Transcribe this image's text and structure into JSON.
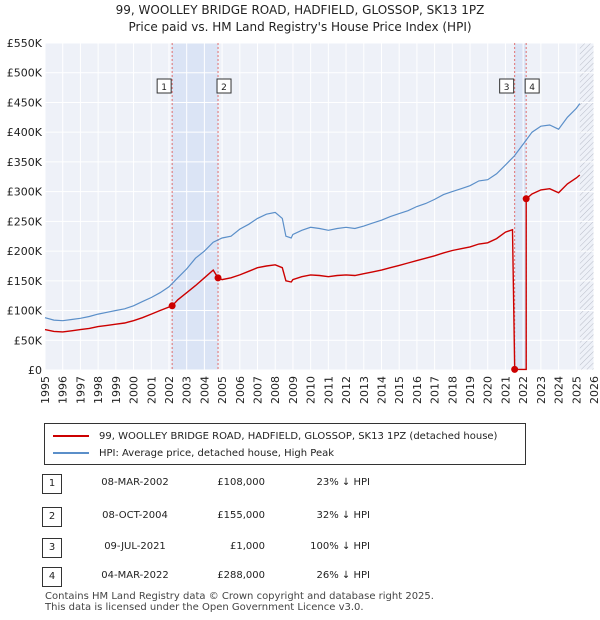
{
  "chart_data": {
    "type": "line",
    "title": "99, WOOLLEY BRIDGE ROAD, HADFIELD, GLOSSOP, SK13 1PZ",
    "subtitle": "Price paid vs. HM Land Registry's House Price Index (HPI)",
    "xlim": [
      1995,
      2026
    ],
    "ylim": [
      0,
      550000
    ],
    "x_ticks": [
      "1995",
      "1996",
      "1997",
      "1998",
      "1999",
      "2000",
      "2001",
      "2002",
      "2003",
      "2004",
      "2005",
      "2006",
      "2007",
      "2008",
      "2009",
      "2010",
      "2011",
      "2012",
      "2013",
      "2014",
      "2015",
      "2016",
      "2017",
      "2018",
      "2019",
      "2020",
      "2021",
      "2022",
      "2023",
      "2024",
      "2025",
      "2026"
    ],
    "y_ticks": [
      {
        "value": 0,
        "label": "£0"
      },
      {
        "value": 50000,
        "label": "£50K"
      },
      {
        "value": 100000,
        "label": "£100K"
      },
      {
        "value": 150000,
        "label": "£150K"
      },
      {
        "value": 200000,
        "label": "£200K"
      },
      {
        "value": 250000,
        "label": "£250K"
      },
      {
        "value": 300000,
        "label": "£300K"
      },
      {
        "value": 350000,
        "label": "£350K"
      },
      {
        "value": 400000,
        "label": "£400K"
      },
      {
        "value": 450000,
        "label": "£450K"
      },
      {
        "value": 500000,
        "label": "£500K"
      },
      {
        "value": 550000,
        "label": "£550K"
      }
    ],
    "grid": true,
    "shaded_future_from": 2025.2,
    "series": [
      {
        "name": "HPI: Average price, detached house, High Peak",
        "color": "#5b8fc9",
        "points": [
          [
            1995,
            88000
          ],
          [
            1995.5,
            84000
          ],
          [
            1996,
            83000
          ],
          [
            1996.5,
            85000
          ],
          [
            1997,
            87000
          ],
          [
            1997.5,
            90000
          ],
          [
            1998,
            94000
          ],
          [
            1998.5,
            97000
          ],
          [
            1999,
            100000
          ],
          [
            1999.5,
            103000
          ],
          [
            2000,
            108000
          ],
          [
            2000.5,
            115000
          ],
          [
            2001,
            122000
          ],
          [
            2001.5,
            130000
          ],
          [
            2002,
            140000
          ],
          [
            2002.5,
            155000
          ],
          [
            2003,
            170000
          ],
          [
            2003.5,
            188000
          ],
          [
            2004,
            200000
          ],
          [
            2004.5,
            215000
          ],
          [
            2005,
            222000
          ],
          [
            2005.5,
            225000
          ],
          [
            2006,
            237000
          ],
          [
            2006.5,
            245000
          ],
          [
            2007,
            255000
          ],
          [
            2007.5,
            262000
          ],
          [
            2008,
            265000
          ],
          [
            2008.4,
            255000
          ],
          [
            2008.6,
            225000
          ],
          [
            2008.9,
            222000
          ],
          [
            2009,
            228000
          ],
          [
            2009.5,
            235000
          ],
          [
            2010,
            240000
          ],
          [
            2010.5,
            238000
          ],
          [
            2011,
            235000
          ],
          [
            2011.5,
            238000
          ],
          [
            2012,
            240000
          ],
          [
            2012.5,
            238000
          ],
          [
            2013,
            242000
          ],
          [
            2013.5,
            247000
          ],
          [
            2014,
            252000
          ],
          [
            2014.5,
            258000
          ],
          [
            2015,
            263000
          ],
          [
            2015.5,
            268000
          ],
          [
            2016,
            275000
          ],
          [
            2016.5,
            280000
          ],
          [
            2017,
            287000
          ],
          [
            2017.5,
            295000
          ],
          [
            2018,
            300000
          ],
          [
            2018.5,
            305000
          ],
          [
            2019,
            310000
          ],
          [
            2019.5,
            318000
          ],
          [
            2020,
            320000
          ],
          [
            2020.5,
            330000
          ],
          [
            2021,
            345000
          ],
          [
            2021.5,
            360000
          ],
          [
            2022,
            380000
          ],
          [
            2022.5,
            400000
          ],
          [
            2023,
            410000
          ],
          [
            2023.5,
            412000
          ],
          [
            2024,
            405000
          ],
          [
            2024.5,
            425000
          ],
          [
            2025,
            440000
          ],
          [
            2025.2,
            448000
          ]
        ]
      },
      {
        "name": "99, WOOLLEY BRIDGE ROAD, HADFIELD, GLOSSOP, SK13 1PZ (detached house)",
        "color": "#cc0000",
        "points": [
          [
            1995,
            68000
          ],
          [
            1995.5,
            65000
          ],
          [
            1996,
            64000
          ],
          [
            1996.5,
            66000
          ],
          [
            1997,
            68000
          ],
          [
            1997.5,
            70000
          ],
          [
            1998,
            73000
          ],
          [
            1998.5,
            75000
          ],
          [
            1999,
            77000
          ],
          [
            1999.5,
            79000
          ],
          [
            2000,
            83000
          ],
          [
            2000.5,
            88000
          ],
          [
            2001,
            94000
          ],
          [
            2001.5,
            100000
          ],
          [
            2002.18,
            108000
          ],
          [
            2002.5,
            118000
          ],
          [
            2003,
            130000
          ],
          [
            2003.5,
            142000
          ],
          [
            2004,
            155000
          ],
          [
            2004.5,
            168000
          ],
          [
            2004.77,
            155000
          ],
          [
            2005,
            152000
          ],
          [
            2005.5,
            155000
          ],
          [
            2006,
            160000
          ],
          [
            2006.5,
            166000
          ],
          [
            2007,
            172000
          ],
          [
            2007.5,
            175000
          ],
          [
            2008,
            177000
          ],
          [
            2008.4,
            172000
          ],
          [
            2008.6,
            150000
          ],
          [
            2008.9,
            148000
          ],
          [
            2009,
            152000
          ],
          [
            2009.5,
            157000
          ],
          [
            2010,
            160000
          ],
          [
            2010.5,
            159000
          ],
          [
            2011,
            157000
          ],
          [
            2011.5,
            159000
          ],
          [
            2012,
            160000
          ],
          [
            2012.5,
            159000
          ],
          [
            2013,
            162000
          ],
          [
            2013.5,
            165000
          ],
          [
            2014,
            168000
          ],
          [
            2014.5,
            172000
          ],
          [
            2015,
            176000
          ],
          [
            2015.5,
            180000
          ],
          [
            2016,
            184000
          ],
          [
            2016.5,
            188000
          ],
          [
            2017,
            192000
          ],
          [
            2017.5,
            197000
          ],
          [
            2018,
            201000
          ],
          [
            2018.5,
            204000
          ],
          [
            2019,
            207000
          ],
          [
            2019.5,
            212000
          ],
          [
            2020,
            214000
          ],
          [
            2020.5,
            221000
          ],
          [
            2021,
            232000
          ],
          [
            2021.4,
            236000
          ],
          [
            2021.52,
            1000
          ],
          [
            2022.17,
            1000
          ],
          [
            2022.17,
            288000
          ],
          [
            2022.5,
            296000
          ],
          [
            2023,
            303000
          ],
          [
            2023.5,
            305000
          ],
          [
            2024,
            298000
          ],
          [
            2024.5,
            313000
          ],
          [
            2025,
            323000
          ],
          [
            2025.2,
            328000
          ]
        ]
      }
    ],
    "sales": [
      {
        "id": "1",
        "x": 2002.18,
        "price": 108000
      },
      {
        "id": "2",
        "x": 2004.77,
        "price": 155000
      },
      {
        "id": "3",
        "x": 2021.52,
        "price": 1000
      },
      {
        "id": "4",
        "x": 2022.17,
        "price": 288000
      }
    ]
  },
  "legend": {
    "property": "99, WOOLLEY BRIDGE ROAD, HADFIELD, GLOSSOP, SK13 1PZ (detached house)",
    "hpi": "HPI: Average price, detached house, High Peak"
  },
  "table": [
    {
      "num": "1",
      "date": "08-MAR-2002",
      "price": "£108,000",
      "pct": "23% ↓ HPI"
    },
    {
      "num": "2",
      "date": "08-OCT-2004",
      "price": "£155,000",
      "pct": "32% ↓ HPI"
    },
    {
      "num": "3",
      "date": "09-JUL-2021",
      "price": "£1,000",
      "pct": "100% ↓ HPI"
    },
    {
      "num": "4",
      "date": "04-MAR-2022",
      "price": "£288,000",
      "pct": "26% ↓ HPI"
    }
  ],
  "footer": {
    "line1": "Contains HM Land Registry data © Crown copyright and database right 2025.",
    "line2": "This data is licensed under the Open Government Licence v3.0."
  }
}
